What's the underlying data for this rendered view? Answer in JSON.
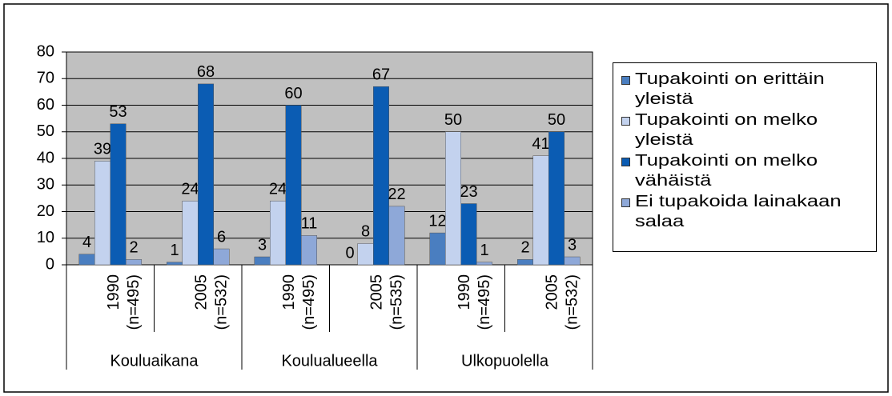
{
  "chart_data": {
    "type": "bar",
    "categories": [
      [
        "1990",
        "(n=495)"
      ],
      [
        "2005",
        "(n=532)"
      ],
      [
        "1990",
        "(n=495)"
      ],
      [
        "2005",
        "(n=535)"
      ],
      [
        "1990",
        "(n=495)"
      ],
      [
        "2005",
        "(n=532)"
      ]
    ],
    "groups": [
      "Kouluaikana",
      "Koulualueella",
      "Ulkopuolella"
    ],
    "series": [
      {
        "name": "Tupakointi on erittäin yleistä",
        "color": "#4a7ec0",
        "values": [
          4,
          1,
          3,
          0,
          12,
          2
        ]
      },
      {
        "name": "Tupakointi on melko yleistä",
        "color": "#c3d2ee",
        "values": [
          39,
          24,
          24,
          8,
          50,
          41
        ]
      },
      {
        "name": "Tupakointi on melko vähäistä",
        "color": "#0b5cb3",
        "values": [
          53,
          68,
          60,
          67,
          23,
          50
        ]
      },
      {
        "name": "Ei tupakoida lainakaan salaa",
        "color": "#8ea8d8",
        "values": [
          2,
          6,
          11,
          22,
          1,
          3
        ]
      }
    ],
    "ylim": [
      0,
      80
    ],
    "yticks": [
      0,
      10,
      20,
      30,
      40,
      50,
      60,
      70,
      80
    ],
    "grid": true,
    "legend": "right"
  }
}
